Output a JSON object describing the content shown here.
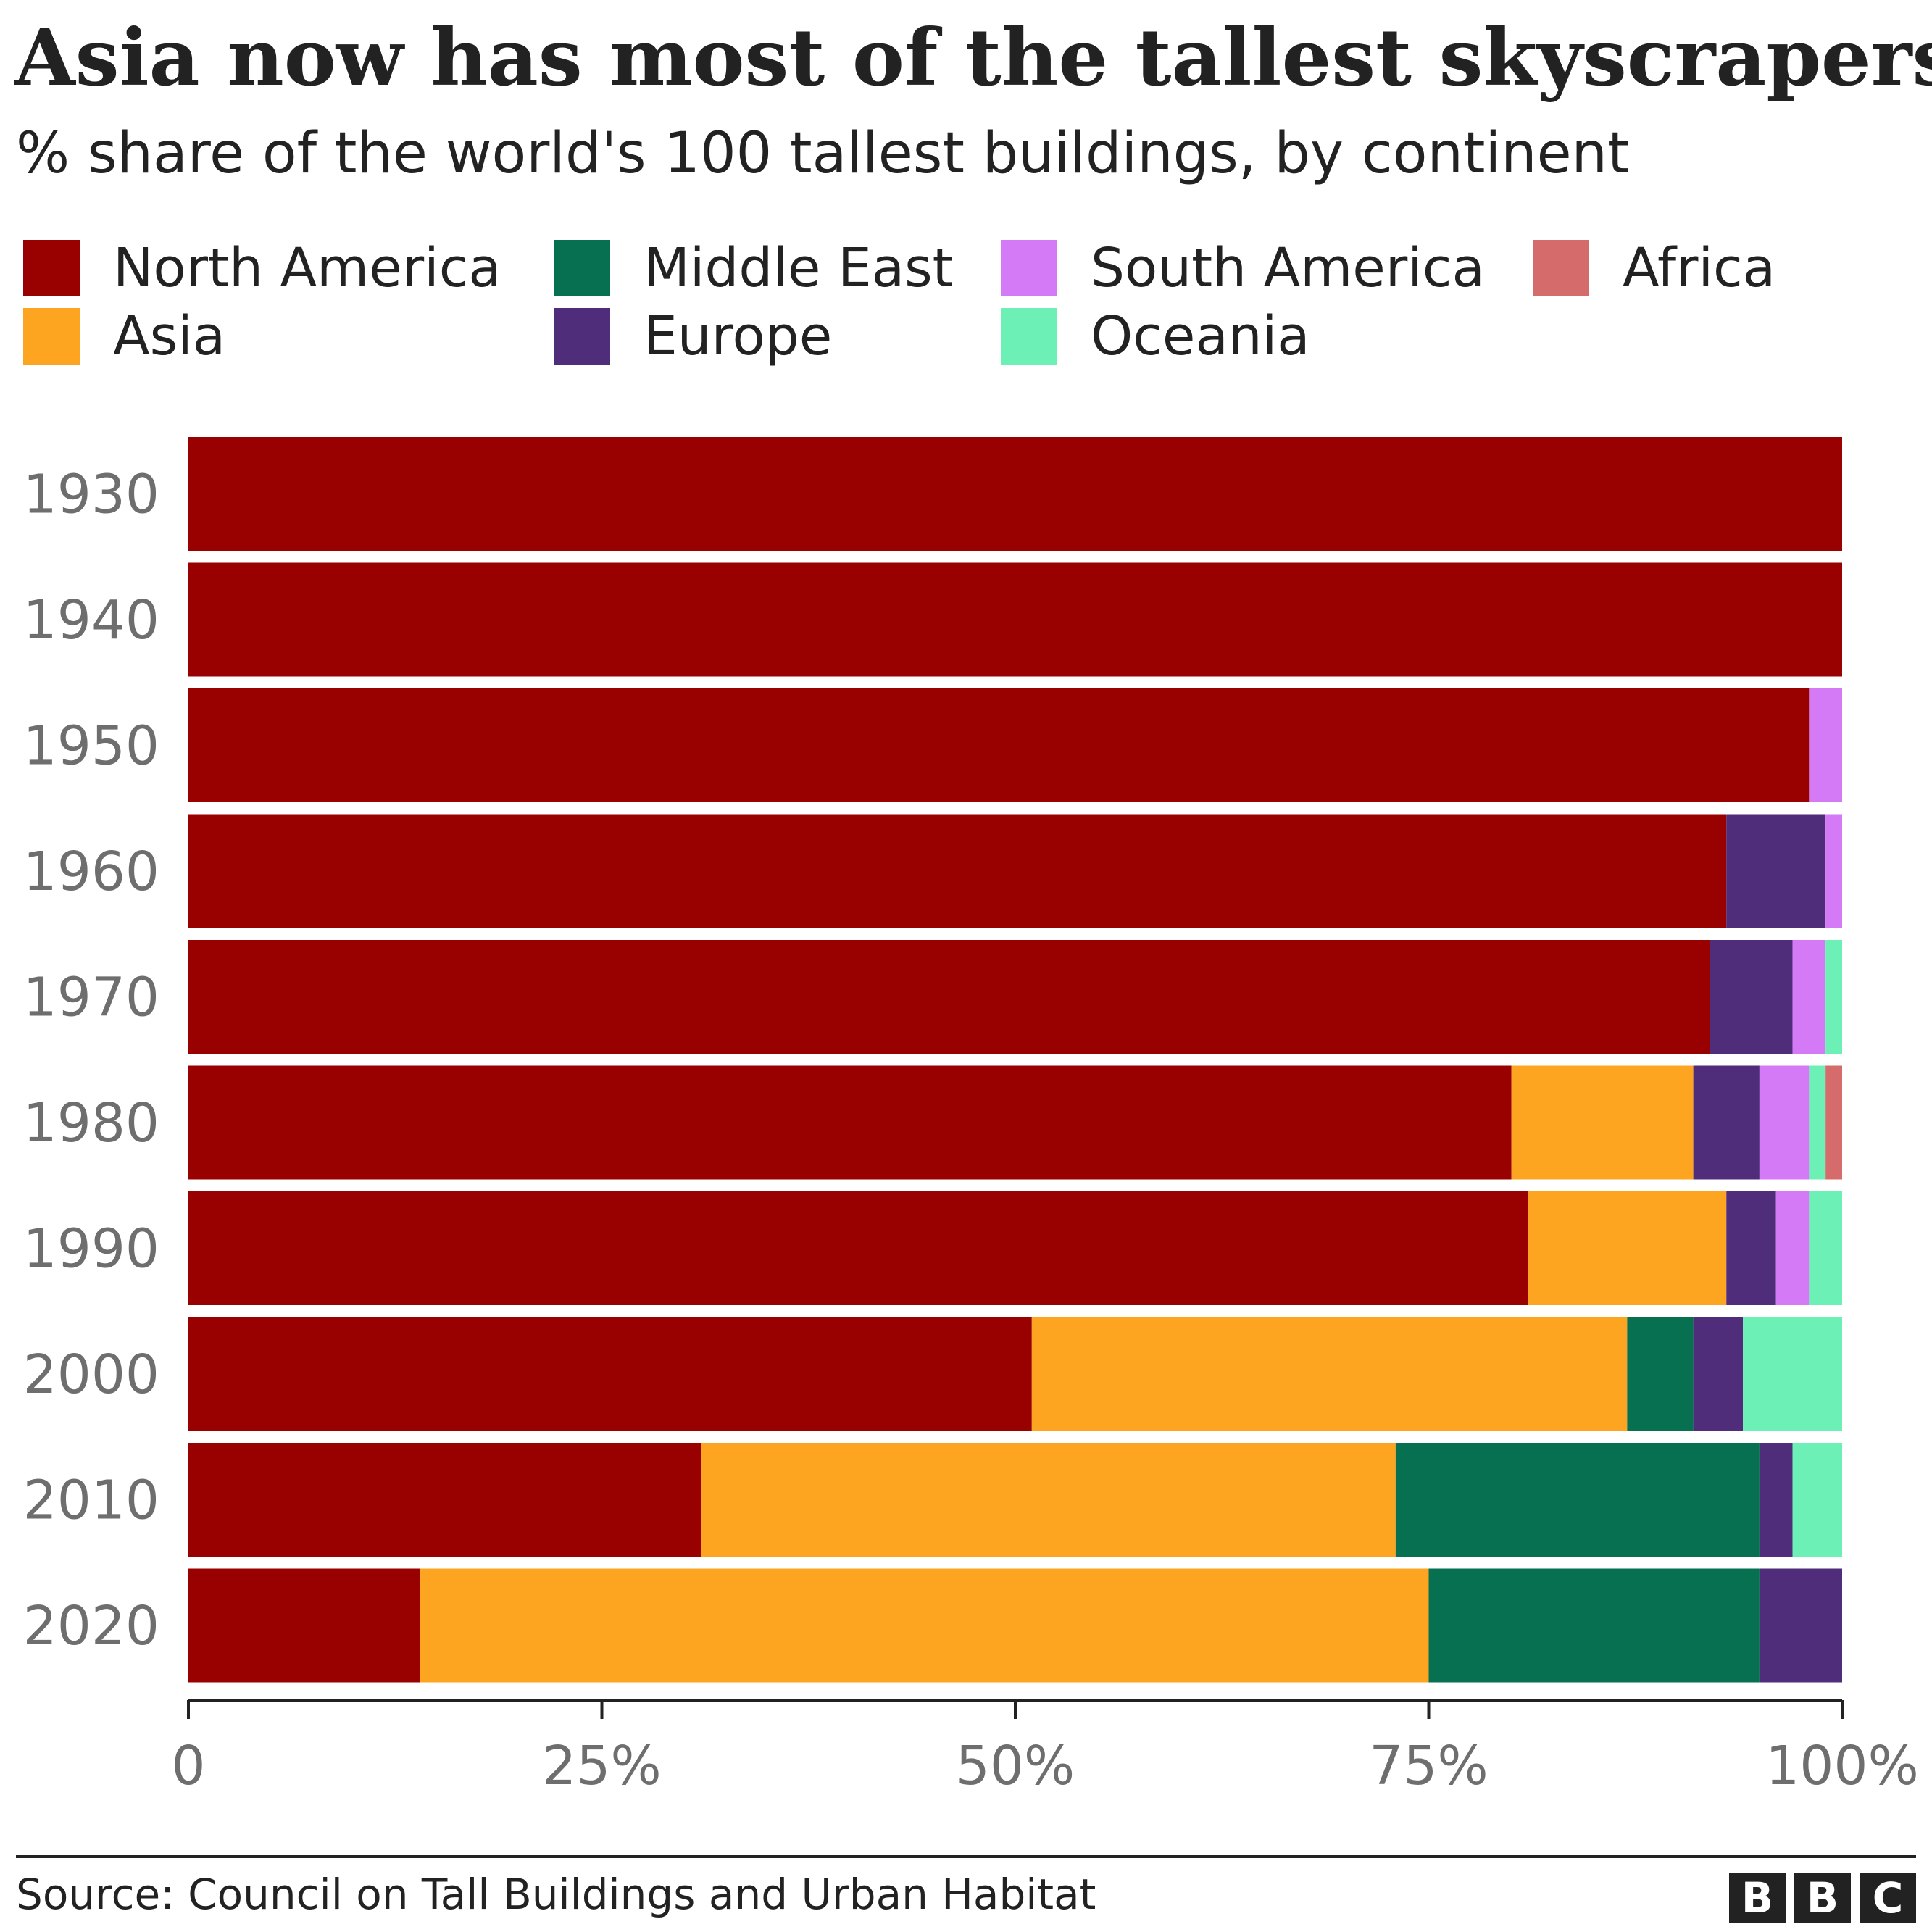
{
  "title": "Asia now has most of the tallest skyscrapers",
  "subtitle": "% share of the world's 100 tallest buildings, by continent",
  "source": "Source: Council on Tall Buildings and Urban Habitat",
  "logo": [
    "B",
    "B",
    "C"
  ],
  "legend": [
    {
      "name": "North America",
      "color": "#990000"
    },
    {
      "name": "Middle East",
      "color": "#077050"
    },
    {
      "name": "South America",
      "color": "#D57AF7"
    },
    {
      "name": "Africa",
      "color": "#D56B6B"
    },
    {
      "name": "Asia",
      "color": "#FDA421"
    },
    {
      "name": "Europe",
      "color": "#4F2D7A"
    },
    {
      "name": "Oceania",
      "color": "#6DF0B6"
    }
  ],
  "chart_data": {
    "type": "bar",
    "orientation": "horizontal",
    "stacked": true,
    "title": "Asia now has most of the tallest skyscrapers",
    "subtitle": "% share of the world's 100 tallest buildings, by continent",
    "xlabel": "",
    "ylabel": "",
    "xlim": [
      0,
      100
    ],
    "xticks": [
      0,
      25,
      50,
      75,
      100
    ],
    "xtick_labels": [
      "0",
      "25%",
      "50%",
      "75%",
      "100%"
    ],
    "categories": [
      "1930",
      "1940",
      "1950",
      "1960",
      "1970",
      "1980",
      "1990",
      "2000",
      "2010",
      "2020"
    ],
    "series": [
      {
        "name": "North America",
        "color": "#990000",
        "values": [
          100,
          100,
          98,
          93,
          92,
          80,
          81,
          51,
          31,
          14
        ]
      },
      {
        "name": "Asia",
        "color": "#FDA421",
        "values": [
          0,
          0,
          0,
          0,
          0,
          11,
          12,
          36,
          42,
          61
        ]
      },
      {
        "name": "Middle East",
        "color": "#077050",
        "values": [
          0,
          0,
          0,
          0,
          0,
          0,
          0,
          4,
          22,
          20
        ]
      },
      {
        "name": "Europe",
        "color": "#4F2D7A",
        "values": [
          0,
          0,
          0,
          6,
          5,
          4,
          3,
          3,
          2,
          5
        ]
      },
      {
        "name": "South America",
        "color": "#D57AF7",
        "values": [
          0,
          0,
          2,
          1,
          2,
          3,
          2,
          0,
          0,
          0
        ]
      },
      {
        "name": "Oceania",
        "color": "#6DF0B6",
        "values": [
          0,
          0,
          0,
          0,
          1,
          1,
          2,
          6,
          3,
          0
        ]
      },
      {
        "name": "Africa",
        "color": "#D56B6B",
        "values": [
          0,
          0,
          0,
          0,
          0,
          1,
          0,
          0,
          0,
          0
        ]
      }
    ],
    "legend_position": "top"
  }
}
